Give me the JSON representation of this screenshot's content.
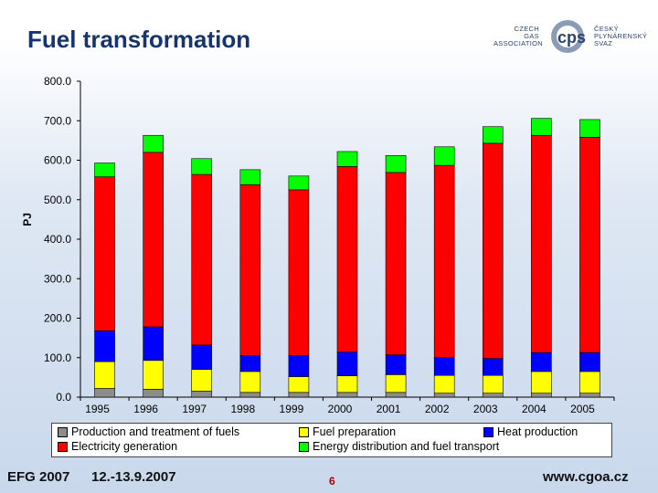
{
  "title": "Fuel transformation",
  "logo": {
    "left_text": "CZECH\nGAS\nASSOCIATION",
    "right_text": "ČESKÝ\nPLYNÁRENSKÝ\nSVAZ",
    "mark": "cps-logo-icon"
  },
  "footer": {
    "event": "EFG 2007",
    "dates": "12.-13.9.2007",
    "page": "6",
    "url": "www.cgoa.cz"
  },
  "colors": {
    "production": "#8c8c8c",
    "fuel_prep": "#ffff00",
    "heat": "#0000ff",
    "electricity": "#ff0000",
    "distribution": "#00ff00"
  },
  "chart_data": {
    "type": "bar",
    "stacked": true,
    "ylabel": "PJ",
    "ylim": [
      0,
      800
    ],
    "yticks": [
      "0.0",
      "100.0",
      "200.0",
      "300.0",
      "400.0",
      "500.0",
      "600.0",
      "700.0",
      "800.0"
    ],
    "categories": [
      "1995",
      "1996",
      "1997",
      "1998",
      "1999",
      "2000",
      "2001",
      "2002",
      "2003",
      "2004",
      "2005"
    ],
    "series": [
      {
        "name": "Production and treatment of fuels",
        "color": "#8c8c8c",
        "values": [
          22,
          20,
          15,
          12,
          12,
          12,
          12,
          10,
          10,
          10,
          10
        ]
      },
      {
        "name": "Fuel preparation",
        "color": "#ffff00",
        "values": [
          68,
          73,
          55,
          53,
          40,
          42,
          45,
          45,
          45,
          55,
          55
        ]
      },
      {
        "name": "Heat production",
        "color": "#0000ff",
        "values": [
          78,
          85,
          62,
          40,
          53,
          60,
          50,
          45,
          43,
          48,
          48
        ]
      },
      {
        "name": "Electricity generation",
        "color": "#ff0000",
        "values": [
          390,
          442,
          432,
          433,
          420,
          470,
          462,
          487,
          545,
          550,
          545
        ]
      },
      {
        "name": "Energy distribution and fuel transport",
        "color": "#00ff00",
        "values": [
          35,
          43,
          40,
          38,
          35,
          38,
          43,
          47,
          42,
          43,
          45
        ]
      }
    ],
    "grid": false,
    "legend_position": "bottom"
  }
}
